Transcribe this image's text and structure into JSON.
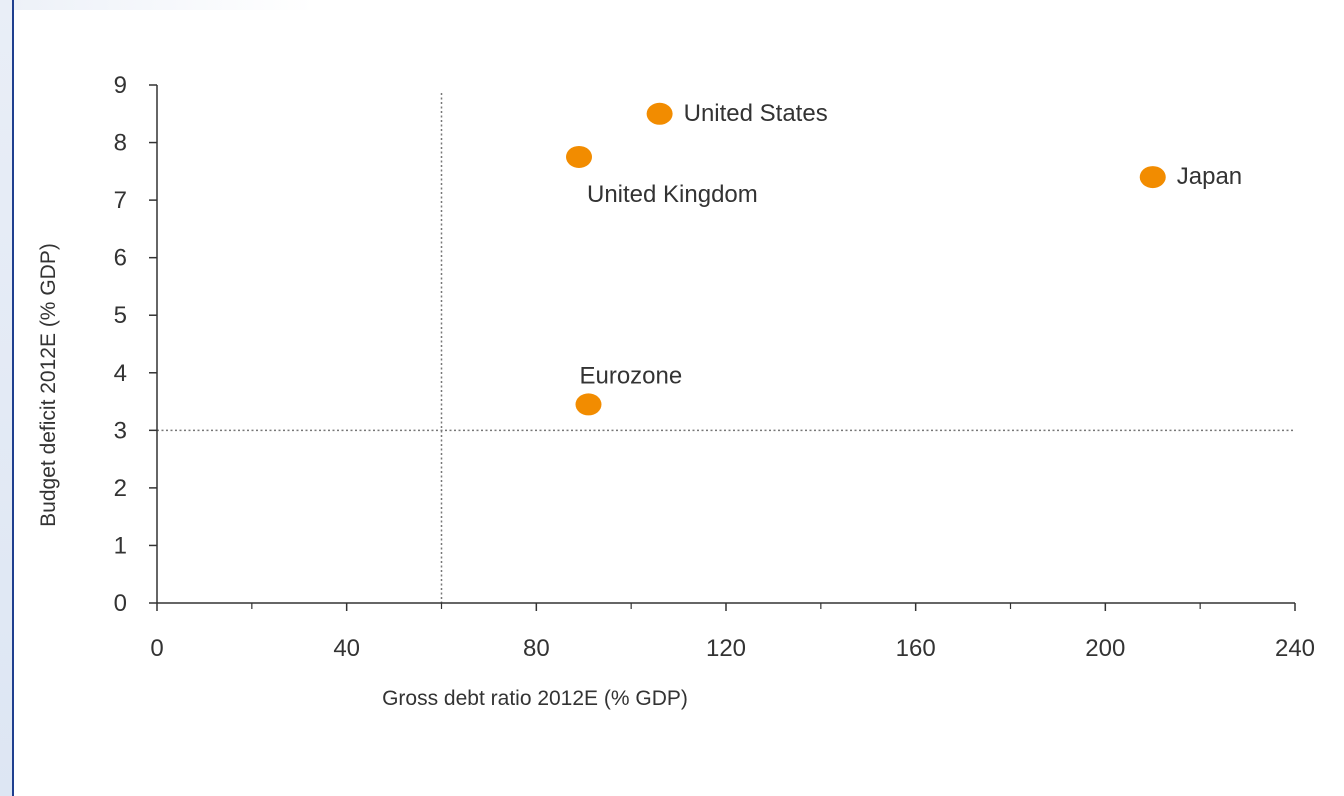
{
  "chart_data": {
    "type": "scatter",
    "title": "",
    "xlabel": "Gross debt ratio 2012E (% GDP)",
    "ylabel": "Budget deficit 2012E (% GDP)",
    "xlim": [
      0,
      240
    ],
    "ylim": [
      0,
      9
    ],
    "xticks": [
      0,
      40,
      80,
      120,
      160,
      200,
      240
    ],
    "yticks": [
      0,
      1,
      2,
      3,
      4,
      5,
      6,
      7,
      8,
      9
    ],
    "grid": false,
    "reference_lines": [
      {
        "axis": "x",
        "value": 60,
        "style": "dotted"
      },
      {
        "axis": "y",
        "value": 3,
        "style": "dotted"
      }
    ],
    "marker_color": "#f28c00",
    "points": [
      {
        "label": "United States",
        "x": 106,
        "y": 8.5,
        "label_position": "right"
      },
      {
        "label": "United Kingdom",
        "x": 89,
        "y": 7.75,
        "label_position": "below"
      },
      {
        "label": "Japan",
        "x": 210,
        "y": 7.4,
        "label_position": "right"
      },
      {
        "label": "Eurozone",
        "x": 91,
        "y": 3.45,
        "label_position": "above"
      }
    ]
  }
}
